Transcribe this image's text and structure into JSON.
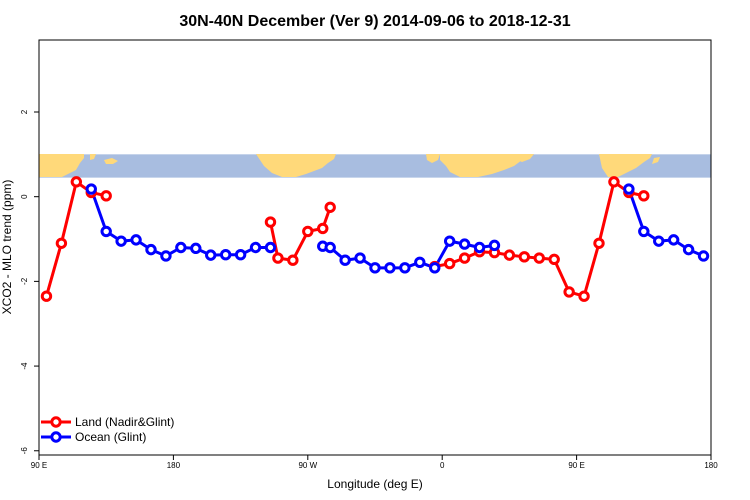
{
  "chart_data": {
    "type": "line",
    "title": "30N-40N December (Ver 9)   2014-09-06 to 2018-12-31",
    "xlabel": "Longitude (deg E)",
    "ylabel": "XCO2 - MLO trend (ppm)",
    "xlim": [
      90,
      540
    ],
    "ylim": [
      -6.1,
      3.7
    ],
    "x_ticks": [
      {
        "value": 90,
        "label": "90 E"
      },
      {
        "value": 180,
        "label": "180"
      },
      {
        "value": 270,
        "label": "90 W"
      },
      {
        "value": 360,
        "label": "0"
      },
      {
        "value": 450,
        "label": "90 E"
      },
      {
        "value": 540,
        "label": "180"
      }
    ],
    "y_ticks": [
      {
        "value": -6,
        "label": "-6"
      },
      {
        "value": -4,
        "label": "-4"
      },
      {
        "value": -2,
        "label": "-2"
      },
      {
        "value": 0,
        "label": "0"
      },
      {
        "value": 2,
        "label": "2"
      }
    ],
    "grid": false,
    "legend_position": "bottom-left",
    "map_strip": {
      "y_range": [
        0.45,
        1.0
      ],
      "ocean_color": "#a8bde0",
      "land_color": "#ffd97a"
    },
    "series": [
      {
        "name": "Land (Nadir&Glint)",
        "color": "#ff0000",
        "segments": [
          [
            [
              95,
              -2.35
            ],
            [
              105,
              -1.1
            ],
            [
              115,
              0.35
            ],
            [
              125,
              0.1
            ],
            [
              135,
              0.02
            ]
          ],
          [
            [
              245,
              -0.6
            ],
            [
              250,
              -1.45
            ],
            [
              260,
              -1.5
            ],
            [
              270,
              -0.82
            ],
            [
              280,
              -0.75
            ],
            [
              285,
              -0.25
            ]
          ],
          [
            [
              355,
              -1.65
            ],
            [
              365,
              -1.58
            ],
            [
              375,
              -1.45
            ],
            [
              385,
              -1.3
            ],
            [
              395,
              -1.32
            ],
            [
              405,
              -1.38
            ],
            [
              415,
              -1.42
            ],
            [
              425,
              -1.45
            ],
            [
              435,
              -1.48
            ],
            [
              445,
              -2.25
            ],
            [
              455,
              -2.35
            ],
            [
              465,
              -1.1
            ],
            [
              475,
              0.35
            ],
            [
              485,
              0.1
            ],
            [
              495,
              0.02
            ]
          ]
        ]
      },
      {
        "name": "Ocean (Glint)",
        "color": "#0000ff",
        "segments": [
          [
            [
              125,
              0.18
            ],
            [
              135,
              -0.82
            ],
            [
              145,
              -1.05
            ],
            [
              155,
              -1.02
            ],
            [
              165,
              -1.25
            ],
            [
              175,
              -1.4
            ],
            [
              185,
              -1.2
            ],
            [
              195,
              -1.22
            ],
            [
              205,
              -1.38
            ],
            [
              215,
              -1.37
            ],
            [
              225,
              -1.37
            ],
            [
              235,
              -1.2
            ],
            [
              245,
              -1.2
            ]
          ],
          [
            [
              280,
              -1.17
            ],
            [
              285,
              -1.2
            ],
            [
              295,
              -1.5
            ],
            [
              305,
              -1.45
            ],
            [
              315,
              -1.68
            ],
            [
              325,
              -1.68
            ],
            [
              335,
              -1.68
            ],
            [
              345,
              -1.55
            ],
            [
              355,
              -1.68
            ],
            [
              365,
              -1.05
            ],
            [
              375,
              -1.12
            ],
            [
              385,
              -1.2
            ],
            [
              395,
              -1.15
            ]
          ],
          [
            [
              485,
              0.18
            ],
            [
              495,
              -0.82
            ],
            [
              505,
              -1.05
            ],
            [
              515,
              -1.02
            ],
            [
              525,
              -1.25
            ],
            [
              535,
              -1.4
            ]
          ]
        ]
      }
    ]
  }
}
